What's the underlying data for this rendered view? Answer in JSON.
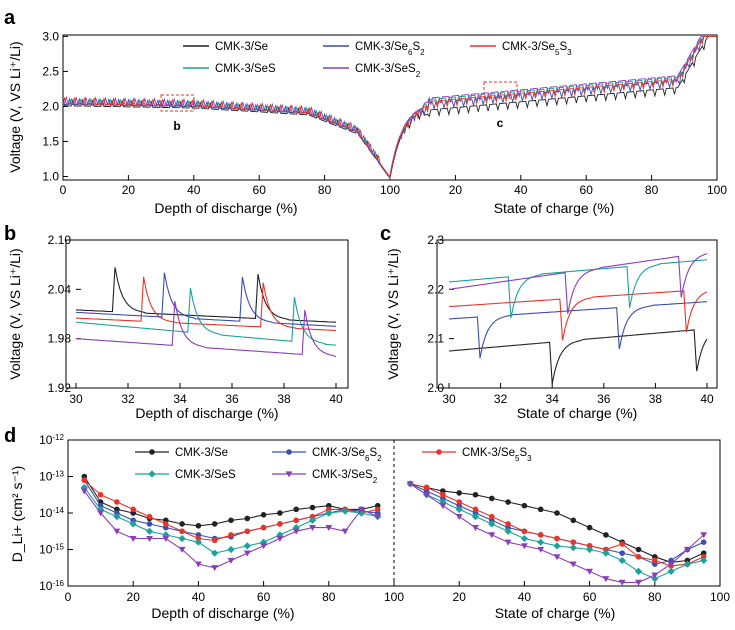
{
  "colors": {
    "Se": "#222222",
    "SeS": "#1aa39a",
    "Se6S2": "#3a4fb0",
    "SeS2": "#8a3fb8",
    "Se5S3": "#e8352a"
  },
  "chart_data": [
    {
      "panel": "a",
      "type": "line",
      "xlabel_left": "Depth of discharge (%)",
      "xlabel_right": "State of charge (%)",
      "ylabel": "Voltage (V, VS Li⁺/Li)",
      "xticks_left": [
        "0",
        "20",
        "40",
        "60",
        "80",
        "100"
      ],
      "xticks_right": [
        "20",
        "40",
        "60",
        "80",
        "100"
      ],
      "yticks": [
        "1.0",
        "1.5",
        "2.0",
        "2.5",
        "3.0"
      ],
      "ylim": [
        0.95,
        3.02
      ],
      "annotations": [
        "b",
        "c"
      ],
      "legend": [
        {
          "key": "Se",
          "label": "CMK-3/Se"
        },
        {
          "key": "Se6S2",
          "label": "CMK-3/Se6S2"
        },
        {
          "key": "Se5S3",
          "label": "CMK-3/Se5S3"
        },
        {
          "key": "SeS",
          "label": "CMK-3/SeS"
        },
        {
          "key": "SeS2",
          "label": "CMK-3/SeS2"
        }
      ],
      "series": [
        {
          "key": "Se",
          "discharge_offset": -0.02,
          "charge_offset": -0.1
        },
        {
          "key": "SeS",
          "discharge_offset": 0.0,
          "charge_offset": 0.05
        },
        {
          "key": "Se6S2",
          "discharge_offset": 0.0,
          "charge_offset": 0.0
        },
        {
          "key": "SeS2",
          "discharge_offset": 0.02,
          "charge_offset": 0.07
        },
        {
          "key": "Se5S3",
          "discharge_offset": 0.01,
          "charge_offset": 0.02
        }
      ]
    },
    {
      "panel": "b",
      "type": "line",
      "xlabel": "Depth of discharge (%)",
      "ylabel": "Voltage (V, VS Li⁺/Li)",
      "xlim": [
        30,
        40
      ],
      "ylim": [
        1.92,
        2.1
      ],
      "xticks": [
        "30",
        "32",
        "34",
        "36",
        "38",
        "40"
      ],
      "yticks": [
        "1.92",
        "1.98",
        "2.04",
        "2.10"
      ],
      "series": [
        {
          "key": "Se",
          "start": 2.015,
          "end": 2.0,
          "spikes": [
            31.5,
            37.0
          ]
        },
        {
          "key": "Se5S3",
          "start": 2.005,
          "end": 1.99,
          "spikes": [
            32.6,
            37.2
          ]
        },
        {
          "key": "SeS",
          "start": 2.0,
          "end": 1.972,
          "spikes": [
            34.4,
            38.4
          ]
        },
        {
          "key": "Se6S2",
          "start": 2.012,
          "end": 1.995,
          "spikes": [
            33.4,
            36.4
          ]
        },
        {
          "key": "SeS2",
          "start": 1.98,
          "end": 1.958,
          "spikes": [
            33.8,
            38.8
          ]
        }
      ]
    },
    {
      "panel": "c",
      "type": "line",
      "xlabel": "State of charge (%)",
      "ylabel": "Voltage (V, VS Li⁺/Li)",
      "xlim": [
        30,
        40
      ],
      "ylim": [
        2.0,
        2.3
      ],
      "xticks": [
        "30",
        "32",
        "34",
        "36",
        "38",
        "40"
      ],
      "yticks": [
        "2.0",
        "2.1",
        "2.2",
        "2.3"
      ],
      "series": [
        {
          "key": "Se",
          "start": 2.075,
          "end": 2.12,
          "dips": [
            34.0,
            39.6
          ]
        },
        {
          "key": "Se6S2",
          "start": 2.14,
          "end": 2.175,
          "dips": [
            31.2,
            36.6
          ]
        },
        {
          "key": "Se5S3",
          "start": 2.165,
          "end": 2.2,
          "dips": [
            34.4,
            39.2
          ]
        },
        {
          "key": "SeS",
          "start": 2.215,
          "end": 2.26,
          "dips": [
            32.4,
            37.0
          ]
        },
        {
          "key": "SeS2",
          "start": 2.2,
          "end": 2.275,
          "dips": [
            34.6,
            39.0
          ]
        }
      ]
    },
    {
      "panel": "d",
      "type": "line",
      "xlabel_left": "Depth of discharge (%)",
      "xlabel_right": "State of charge (%)",
      "ylabel": "D_Li+ (cm² s⁻¹)",
      "ylim_log10": [
        -16,
        -12
      ],
      "yticks_exp": [
        "-12",
        "-13",
        "-14",
        "-15",
        "-16"
      ],
      "xticks_left": [
        "0",
        "20",
        "40",
        "60",
        "80",
        "100"
      ],
      "xticks_right": [
        "20",
        "40",
        "60",
        "80",
        "100"
      ],
      "legend": [
        {
          "key": "Se",
          "label": "CMK-3/Se",
          "marker": "circle"
        },
        {
          "key": "Se6S2",
          "label": "CMK-3/Se6S2",
          "marker": "circle"
        },
        {
          "key": "Se5S3",
          "label": "CMK-3/Se5S3",
          "marker": "circle"
        },
        {
          "key": "SeS",
          "label": "CMK-3/SeS",
          "marker": "diamond"
        },
        {
          "key": "SeS2",
          "label": "CMK-3/SeS2",
          "marker": "triangle"
        }
      ],
      "series": [
        {
          "key": "Se",
          "marker": "circle",
          "discharge": {
            "x": [
              5,
              10,
              15,
              20,
              25,
              30,
              35,
              40,
              45,
              50,
              55,
              60,
              65,
              70,
              75,
              80,
              85,
              90,
              95
            ],
            "y": [
              -13.0,
              -13.7,
              -13.9,
              -14.0,
              -14.15,
              -14.2,
              -14.3,
              -14.35,
              -14.3,
              -14.2,
              -14.15,
              -14.05,
              -14.0,
              -13.9,
              -13.85,
              -13.8,
              -13.9,
              -13.9,
              -13.8
            ]
          },
          "charge": {
            "x": [
              5,
              10,
              15,
              20,
              25,
              30,
              35,
              40,
              45,
              50,
              55,
              60,
              65,
              70,
              75,
              80,
              85,
              90,
              95
            ],
            "y": [
              -13.2,
              -13.3,
              -13.4,
              -13.45,
              -13.5,
              -13.6,
              -13.7,
              -13.8,
              -13.9,
              -14.0,
              -14.2,
              -14.4,
              -14.6,
              -14.8,
              -15.0,
              -15.2,
              -15.35,
              -15.3,
              -15.1
            ]
          }
        },
        {
          "key": "Se6S2",
          "marker": "circle",
          "discharge": {
            "x": [
              5,
              10,
              15,
              20,
              25,
              30,
              35,
              40,
              45,
              50,
              55,
              60,
              65,
              70,
              75,
              80,
              85,
              90,
              95
            ],
            "y": [
              -13.1,
              -13.8,
              -14.0,
              -14.2,
              -14.3,
              -14.4,
              -14.5,
              -14.6,
              -14.7,
              -14.65,
              -14.5,
              -14.4,
              -14.3,
              -14.2,
              -14.1,
              -14.0,
              -13.9,
              -13.95,
              -14.0
            ]
          },
          "charge": {
            "x": [
              5,
              10,
              15,
              20,
              25,
              30,
              35,
              40,
              45,
              50,
              55,
              60,
              65,
              70,
              75,
              80,
              85,
              90,
              95
            ],
            "y": [
              -13.2,
              -13.4,
              -13.6,
              -13.8,
              -14.0,
              -14.2,
              -14.4,
              -14.5,
              -14.6,
              -14.7,
              -14.8,
              -14.9,
              -15.0,
              -15.1,
              -15.2,
              -15.4,
              -15.3,
              -15.0,
              -14.8
            ]
          }
        },
        {
          "key": "Se5S3",
          "marker": "circle",
          "discharge": {
            "x": [
              5,
              10,
              15,
              20,
              25,
              30,
              35,
              40,
              45,
              50,
              55,
              60,
              65,
              70,
              75,
              80,
              85,
              90,
              95
            ],
            "y": [
              -13.1,
              -13.5,
              -13.7,
              -13.9,
              -14.1,
              -14.3,
              -14.5,
              -14.7,
              -14.75,
              -14.6,
              -14.5,
              -14.4,
              -14.3,
              -14.2,
              -14.1,
              -13.9,
              -13.9,
              -14.0,
              -13.9
            ]
          },
          "charge": {
            "x": [
              5,
              10,
              15,
              20,
              25,
              30,
              35,
              40,
              45,
              50,
              55,
              60,
              65,
              70,
              75,
              80,
              85,
              90,
              95
            ],
            "y": [
              -13.2,
              -13.3,
              -13.5,
              -13.7,
              -13.9,
              -14.1,
              -14.3,
              -14.5,
              -14.6,
              -14.7,
              -14.8,
              -14.9,
              -15.0,
              -14.85,
              -15.2,
              -15.3,
              -15.45,
              -15.4,
              -15.2
            ]
          }
        },
        {
          "key": "SeS",
          "marker": "diamond",
          "discharge": {
            "x": [
              5,
              10,
              15,
              20,
              25,
              30,
              35,
              40,
              45,
              50,
              55,
              60,
              65,
              70,
              75,
              80,
              85,
              90,
              95
            ],
            "y": [
              -13.3,
              -13.9,
              -14.1,
              -14.3,
              -14.5,
              -14.6,
              -14.7,
              -14.8,
              -15.1,
              -15.0,
              -14.9,
              -14.8,
              -14.6,
              -14.4,
              -14.2,
              -14.0,
              -13.95,
              -14.0,
              -14.1
            ]
          },
          "charge": {
            "x": [
              5,
              10,
              15,
              20,
              25,
              30,
              35,
              40,
              45,
              50,
              55,
              60,
              65,
              70,
              75,
              80,
              85,
              90,
              95
            ],
            "y": [
              -13.2,
              -13.5,
              -13.7,
              -13.9,
              -14.1,
              -14.3,
              -14.5,
              -14.7,
              -14.8,
              -14.9,
              -14.95,
              -15.0,
              -15.1,
              -15.3,
              -15.6,
              -15.8,
              -15.6,
              -15.4,
              -15.3
            ]
          }
        },
        {
          "key": "SeS2",
          "marker": "triangle",
          "discharge": {
            "x": [
              5,
              10,
              15,
              20,
              25,
              30,
              35,
              40,
              45,
              50,
              55,
              60,
              65,
              70,
              75,
              80,
              85,
              90,
              95
            ],
            "y": [
              -13.4,
              -14.0,
              -14.5,
              -14.7,
              -14.7,
              -14.7,
              -15.0,
              -15.4,
              -15.5,
              -15.3,
              -15.1,
              -14.9,
              -14.7,
              -14.5,
              -14.4,
              -14.4,
              -14.5,
              -13.9,
              -14.1
            ]
          },
          "charge": {
            "x": [
              5,
              10,
              15,
              20,
              25,
              30,
              35,
              40,
              45,
              50,
              55,
              60,
              65,
              70,
              75,
              80,
              85,
              90,
              95
            ],
            "y": [
              -13.2,
              -13.5,
              -13.8,
              -14.1,
              -14.4,
              -14.6,
              -14.8,
              -14.9,
              -15.0,
              -15.2,
              -15.4,
              -15.6,
              -15.8,
              -15.9,
              -15.9,
              -15.7,
              -15.4,
              -15.0,
              -14.6
            ]
          }
        }
      ]
    }
  ]
}
